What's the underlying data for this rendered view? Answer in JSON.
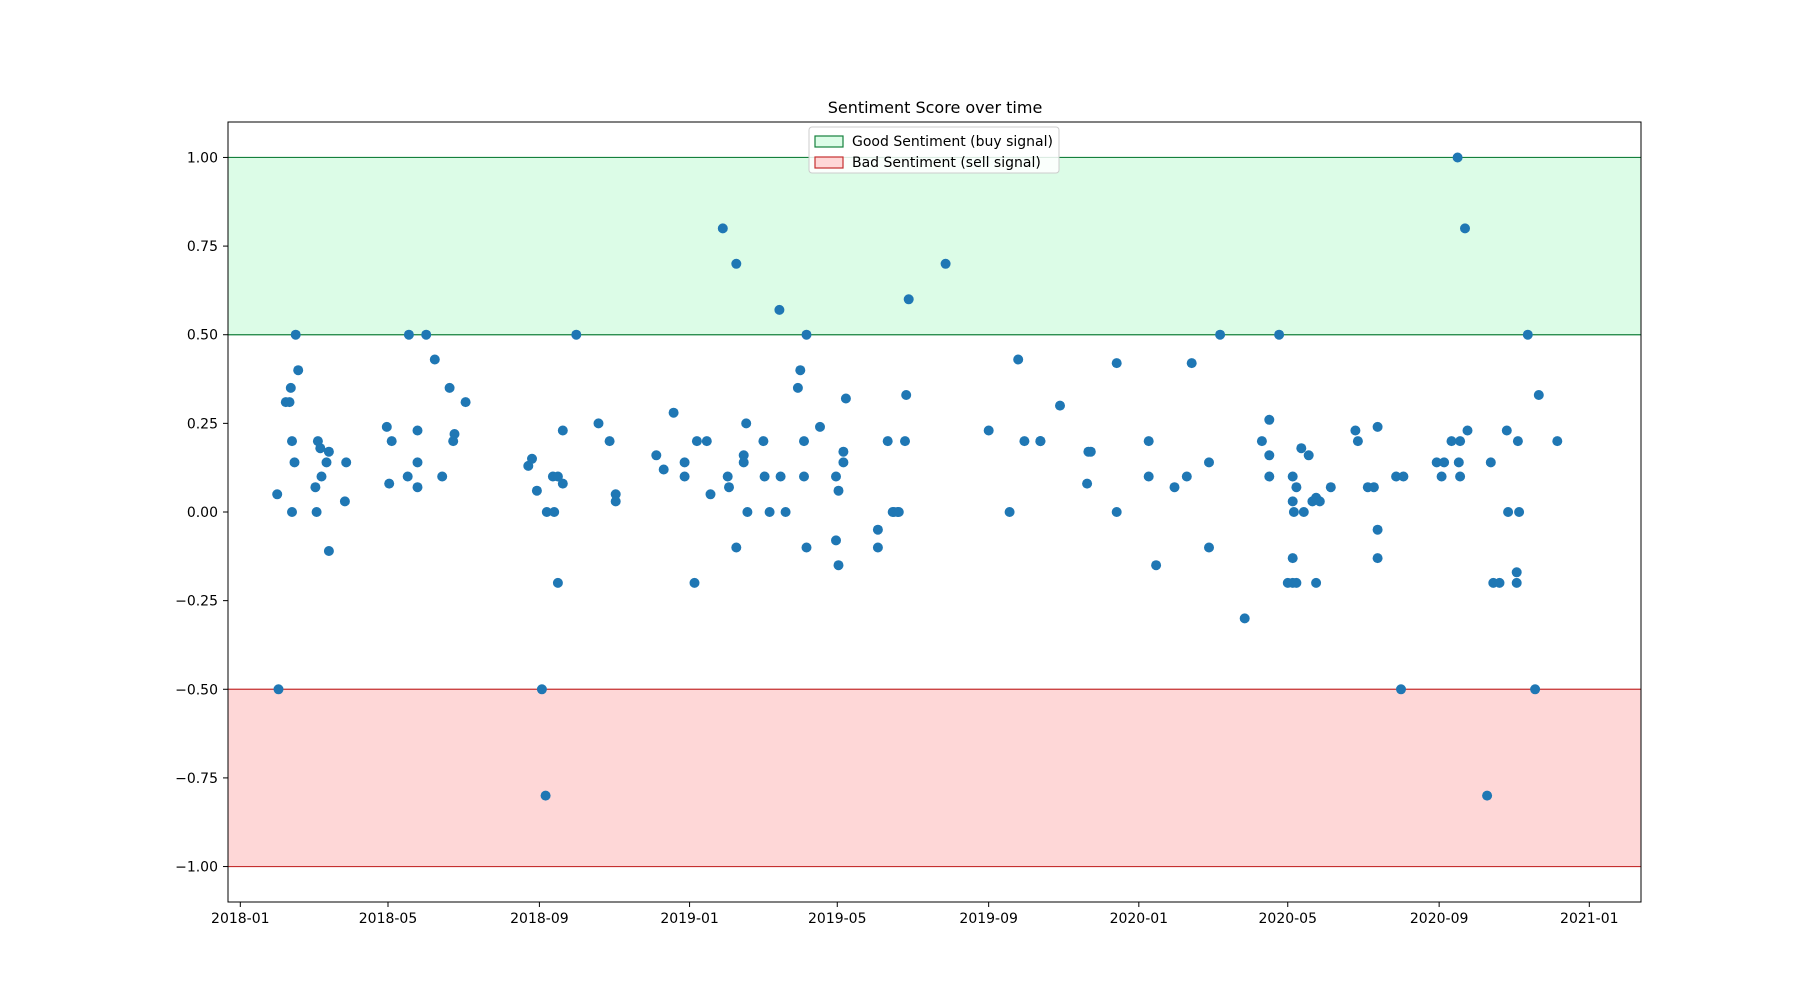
{
  "chart_data": {
    "type": "scatter",
    "title": "Sentiment Score over time",
    "xlabel": "",
    "ylabel": "",
    "x_ticks": [
      "2018-01",
      "2018-05",
      "2018-09",
      "2019-01",
      "2019-05",
      "2019-09",
      "2020-01",
      "2020-05",
      "2020-09",
      "2021-01"
    ],
    "y_ticks": [
      1.0,
      0.75,
      0.5,
      0.25,
      0.0,
      -0.25,
      -0.5,
      -0.75,
      -1.0
    ],
    "y_tick_labels": [
      "1.00",
      "0.75",
      "0.50",
      "0.25",
      "0.00",
      "−0.25",
      "−0.50",
      "−0.75",
      "−1.00"
    ],
    "xlim": [
      "2017-12-22",
      "2021-02-12"
    ],
    "ylim": [
      -1.1,
      1.1
    ],
    "grid": false,
    "legend_placement": "upper center",
    "point_color": "#1f77b4",
    "bands": [
      {
        "name": "Good Sentiment (buy signal)",
        "from": 0.5,
        "to": 1.0,
        "fill": "#dcfce7",
        "edge": "#15803d"
      },
      {
        "name": "Bad Sentiment (sell signal)",
        "from": -1.0,
        "to": -0.5,
        "fill": "#fed7d7",
        "edge": "#c53030"
      }
    ],
    "points": [
      {
        "x": "2018-01-31",
        "y": 0.05
      },
      {
        "x": "2018-02-01",
        "y": -0.5
      },
      {
        "x": "2018-02-07",
        "y": 0.31
      },
      {
        "x": "2018-02-10",
        "y": 0.31
      },
      {
        "x": "2018-02-11",
        "y": 0.35
      },
      {
        "x": "2018-02-12",
        "y": 0.2
      },
      {
        "x": "2018-02-12",
        "y": 0.0
      },
      {
        "x": "2018-02-14",
        "y": 0.14
      },
      {
        "x": "2018-02-15",
        "y": 0.5
      },
      {
        "x": "2018-02-17",
        "y": 0.4
      },
      {
        "x": "2018-03-03",
        "y": 0.07
      },
      {
        "x": "2018-03-04",
        "y": 0.0
      },
      {
        "x": "2018-03-05",
        "y": 0.2
      },
      {
        "x": "2018-03-07",
        "y": 0.18
      },
      {
        "x": "2018-03-08",
        "y": 0.1
      },
      {
        "x": "2018-03-12",
        "y": 0.14
      },
      {
        "x": "2018-03-14",
        "y": 0.17
      },
      {
        "x": "2018-03-14",
        "y": -0.11
      },
      {
        "x": "2018-03-27",
        "y": 0.03
      },
      {
        "x": "2018-03-28",
        "y": 0.14
      },
      {
        "x": "2018-04-30",
        "y": 0.24
      },
      {
        "x": "2018-05-02",
        "y": 0.08
      },
      {
        "x": "2018-05-04",
        "y": 0.2
      },
      {
        "x": "2018-05-18",
        "y": 0.5
      },
      {
        "x": "2018-05-17",
        "y": 0.1
      },
      {
        "x": "2018-05-25",
        "y": 0.23
      },
      {
        "x": "2018-05-25",
        "y": 0.14
      },
      {
        "x": "2018-05-25",
        "y": 0.07
      },
      {
        "x": "2018-06-01",
        "y": 0.5
      },
      {
        "x": "2018-06-08",
        "y": 0.43
      },
      {
        "x": "2018-06-14",
        "y": 0.1
      },
      {
        "x": "2018-06-20",
        "y": 0.35
      },
      {
        "x": "2018-06-23",
        "y": 0.2
      },
      {
        "x": "2018-06-24",
        "y": 0.22
      },
      {
        "x": "2018-07-03",
        "y": 0.31
      },
      {
        "x": "2018-08-23",
        "y": 0.13
      },
      {
        "x": "2018-08-26",
        "y": 0.15
      },
      {
        "x": "2018-08-30",
        "y": 0.06
      },
      {
        "x": "2018-09-03",
        "y": -0.5
      },
      {
        "x": "2018-09-06",
        "y": -0.8
      },
      {
        "x": "2018-09-07",
        "y": 0.0
      },
      {
        "x": "2018-09-12",
        "y": 0.1
      },
      {
        "x": "2018-09-13",
        "y": 0.0
      },
      {
        "x": "2018-09-16",
        "y": -0.2
      },
      {
        "x": "2018-09-16",
        "y": 0.1
      },
      {
        "x": "2018-09-20",
        "y": 0.23
      },
      {
        "x": "2018-09-20",
        "y": 0.08
      },
      {
        "x": "2018-10-01",
        "y": 0.5
      },
      {
        "x": "2018-10-19",
        "y": 0.25
      },
      {
        "x": "2018-10-28",
        "y": 0.2
      },
      {
        "x": "2018-11-02",
        "y": 0.05
      },
      {
        "x": "2018-11-02",
        "y": 0.03
      },
      {
        "x": "2018-12-05",
        "y": 0.16
      },
      {
        "x": "2018-12-11",
        "y": 0.12
      },
      {
        "x": "2018-12-19",
        "y": 0.28
      },
      {
        "x": "2018-12-28",
        "y": 0.14
      },
      {
        "x": "2018-12-28",
        "y": 0.1
      },
      {
        "x": "2019-01-05",
        "y": -0.2
      },
      {
        "x": "2019-01-07",
        "y": 0.2
      },
      {
        "x": "2019-01-15",
        "y": 0.2
      },
      {
        "x": "2019-01-18",
        "y": 0.05
      },
      {
        "x": "2019-01-28",
        "y": 0.8
      },
      {
        "x": "2019-02-01",
        "y": 0.1
      },
      {
        "x": "2019-02-02",
        "y": 0.07
      },
      {
        "x": "2019-02-08",
        "y": 0.7
      },
      {
        "x": "2019-02-08",
        "y": -0.1
      },
      {
        "x": "2019-02-14",
        "y": 0.16
      },
      {
        "x": "2019-02-14",
        "y": 0.14
      },
      {
        "x": "2019-02-16",
        "y": 0.25
      },
      {
        "x": "2019-02-17",
        "y": 0.0
      },
      {
        "x": "2019-03-02",
        "y": 0.2
      },
      {
        "x": "2019-03-03",
        "y": 0.1
      },
      {
        "x": "2019-03-07",
        "y": 0.0
      },
      {
        "x": "2019-03-15",
        "y": 0.57
      },
      {
        "x": "2019-03-16",
        "y": 0.1
      },
      {
        "x": "2019-03-20",
        "y": 0.0
      },
      {
        "x": "2019-03-30",
        "y": 0.35
      },
      {
        "x": "2019-04-01",
        "y": 0.4
      },
      {
        "x": "2019-04-04",
        "y": 0.2
      },
      {
        "x": "2019-04-04",
        "y": 0.1
      },
      {
        "x": "2019-04-06",
        "y": 0.5
      },
      {
        "x": "2019-04-06",
        "y": -0.1
      },
      {
        "x": "2019-04-17",
        "y": 0.24
      },
      {
        "x": "2019-04-30",
        "y": -0.08
      },
      {
        "x": "2019-04-30",
        "y": 0.1
      },
      {
        "x": "2019-05-02",
        "y": -0.15
      },
      {
        "x": "2019-05-02",
        "y": 0.06
      },
      {
        "x": "2019-05-06",
        "y": 0.14
      },
      {
        "x": "2019-05-06",
        "y": 0.17
      },
      {
        "x": "2019-05-08",
        "y": 0.32
      },
      {
        "x": "2019-06-03",
        "y": -0.05
      },
      {
        "x": "2019-06-03",
        "y": -0.1
      },
      {
        "x": "2019-06-11",
        "y": 0.2
      },
      {
        "x": "2019-06-15",
        "y": 0.0
      },
      {
        "x": "2019-06-16",
        "y": 0.0
      },
      {
        "x": "2019-06-19",
        "y": 0.0
      },
      {
        "x": "2019-06-20",
        "y": 0.0
      },
      {
        "x": "2019-06-25",
        "y": 0.2
      },
      {
        "x": "2019-06-26",
        "y": 0.33
      },
      {
        "x": "2019-06-28",
        "y": 0.6
      },
      {
        "x": "2019-07-28",
        "y": 0.7
      },
      {
        "x": "2019-09-01",
        "y": 0.23
      },
      {
        "x": "2019-09-18",
        "y": 0.0
      },
      {
        "x": "2019-09-25",
        "y": 0.43
      },
      {
        "x": "2019-09-30",
        "y": 0.2
      },
      {
        "x": "2019-10-13",
        "y": 0.2
      },
      {
        "x": "2019-10-13",
        "y": 0.2
      },
      {
        "x": "2019-10-13",
        "y": 0.2
      },
      {
        "x": "2019-10-29",
        "y": 0.3
      },
      {
        "x": "2019-11-20",
        "y": 0.08
      },
      {
        "x": "2019-11-21",
        "y": 0.17
      },
      {
        "x": "2019-11-23",
        "y": 0.17
      },
      {
        "x": "2019-12-14",
        "y": 0.42
      },
      {
        "x": "2019-12-14",
        "y": 0.0
      },
      {
        "x": "2020-01-09",
        "y": 0.2
      },
      {
        "x": "2020-01-09",
        "y": 0.1
      },
      {
        "x": "2020-01-15",
        "y": -0.15
      },
      {
        "x": "2020-01-30",
        "y": 0.07
      },
      {
        "x": "2020-02-09",
        "y": 0.1
      },
      {
        "x": "2020-02-13",
        "y": 0.42
      },
      {
        "x": "2020-02-27",
        "y": 0.14
      },
      {
        "x": "2020-02-27",
        "y": -0.1
      },
      {
        "x": "2020-03-07",
        "y": 0.5
      },
      {
        "x": "2020-03-27",
        "y": -0.3
      },
      {
        "x": "2020-04-10",
        "y": 0.2
      },
      {
        "x": "2020-04-16",
        "y": 0.26
      },
      {
        "x": "2020-04-16",
        "y": 0.1
      },
      {
        "x": "2020-04-16",
        "y": 0.16
      },
      {
        "x": "2020-04-24",
        "y": 0.5
      },
      {
        "x": "2020-05-01",
        "y": -0.2
      },
      {
        "x": "2020-05-05",
        "y": -0.2
      },
      {
        "x": "2020-05-05",
        "y": 0.1
      },
      {
        "x": "2020-05-05",
        "y": 0.03
      },
      {
        "x": "2020-05-05",
        "y": -0.13
      },
      {
        "x": "2020-05-06",
        "y": 0.0
      },
      {
        "x": "2020-05-08",
        "y": -0.2
      },
      {
        "x": "2020-05-08",
        "y": 0.07
      },
      {
        "x": "2020-05-12",
        "y": 0.18
      },
      {
        "x": "2020-05-14",
        "y": 0.0
      },
      {
        "x": "2020-05-18",
        "y": 0.16
      },
      {
        "x": "2020-05-21",
        "y": 0.03
      },
      {
        "x": "2020-05-24",
        "y": -0.2
      },
      {
        "x": "2020-05-24",
        "y": 0.04
      },
      {
        "x": "2020-05-27",
        "y": 0.03
      },
      {
        "x": "2020-06-05",
        "y": 0.07
      },
      {
        "x": "2020-06-25",
        "y": 0.23
      },
      {
        "x": "2020-06-27",
        "y": 0.2
      },
      {
        "x": "2020-07-05",
        "y": 0.07
      },
      {
        "x": "2020-07-10",
        "y": 0.07
      },
      {
        "x": "2020-07-13",
        "y": 0.24
      },
      {
        "x": "2020-07-13",
        "y": -0.05
      },
      {
        "x": "2020-07-13",
        "y": -0.13
      },
      {
        "x": "2020-07-28",
        "y": 0.1
      },
      {
        "x": "2020-08-01",
        "y": -0.5
      },
      {
        "x": "2020-08-03",
        "y": 0.1
      },
      {
        "x": "2020-08-30",
        "y": 0.14
      },
      {
        "x": "2020-09-03",
        "y": 0.1
      },
      {
        "x": "2020-09-05",
        "y": 0.14
      },
      {
        "x": "2020-09-11",
        "y": 0.2
      },
      {
        "x": "2020-09-16",
        "y": 1.0
      },
      {
        "x": "2020-09-17",
        "y": 0.14
      },
      {
        "x": "2020-09-18",
        "y": 0.1
      },
      {
        "x": "2020-09-18",
        "y": 0.2
      },
      {
        "x": "2020-09-22",
        "y": 0.8
      },
      {
        "x": "2020-09-24",
        "y": 0.23
      },
      {
        "x": "2020-10-10",
        "y": -0.8
      },
      {
        "x": "2020-10-13",
        "y": 0.14
      },
      {
        "x": "2020-10-15",
        "y": -0.2
      },
      {
        "x": "2020-10-20",
        "y": -0.2
      },
      {
        "x": "2020-10-26",
        "y": 0.23
      },
      {
        "x": "2020-10-27",
        "y": 0.0
      },
      {
        "x": "2020-11-03",
        "y": -0.2
      },
      {
        "x": "2020-11-03",
        "y": -0.17
      },
      {
        "x": "2020-11-04",
        "y": 0.2
      },
      {
        "x": "2020-11-05",
        "y": 0.0
      },
      {
        "x": "2020-11-12",
        "y": 0.5
      },
      {
        "x": "2020-11-18",
        "y": -0.5
      },
      {
        "x": "2020-11-21",
        "y": 0.33
      },
      {
        "x": "2020-12-06",
        "y": 0.2
      }
    ]
  }
}
